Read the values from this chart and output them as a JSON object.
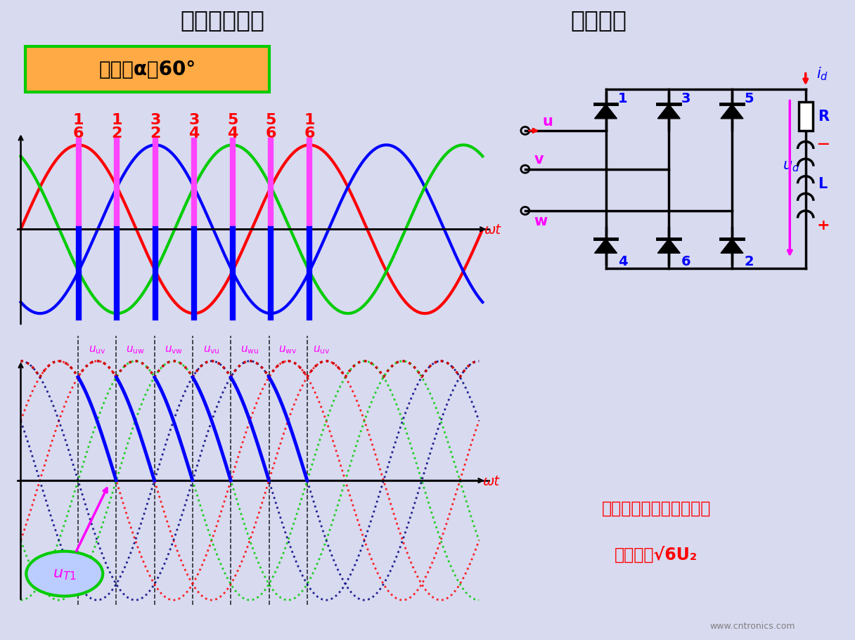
{
  "title_left": "三相全控桥式",
  "title_right": "工作原理",
  "title_bg": "#9090bb",
  "main_bg": "#d8daf0",
  "teal_border": "#00ccaa",
  "green_border": "#00cc00",
  "alpha_label": "控制角α＝60°",
  "phase_u_color": "#ff0000",
  "phase_v_color": "#0000ff",
  "phase_w_color": "#00cc00",
  "trigger_color_upper": "#ff44ff",
  "trigger_color_lower": "#0000ff",
  "pair_top": [
    "1",
    "1",
    "3",
    "3",
    "5",
    "5",
    "1"
  ],
  "pair_bot": [
    "6",
    "2",
    "2",
    "4",
    "4",
    "6",
    "6"
  ],
  "ll_names": [
    "uv",
    "uw",
    "vw",
    "vu",
    "wu",
    "wv",
    "uv"
  ],
  "bottom_text": "www.cntronics.com",
  "info_line1": "晶闸管承受的最大正、反",
  "info_line2": "向压降为√6U₂"
}
